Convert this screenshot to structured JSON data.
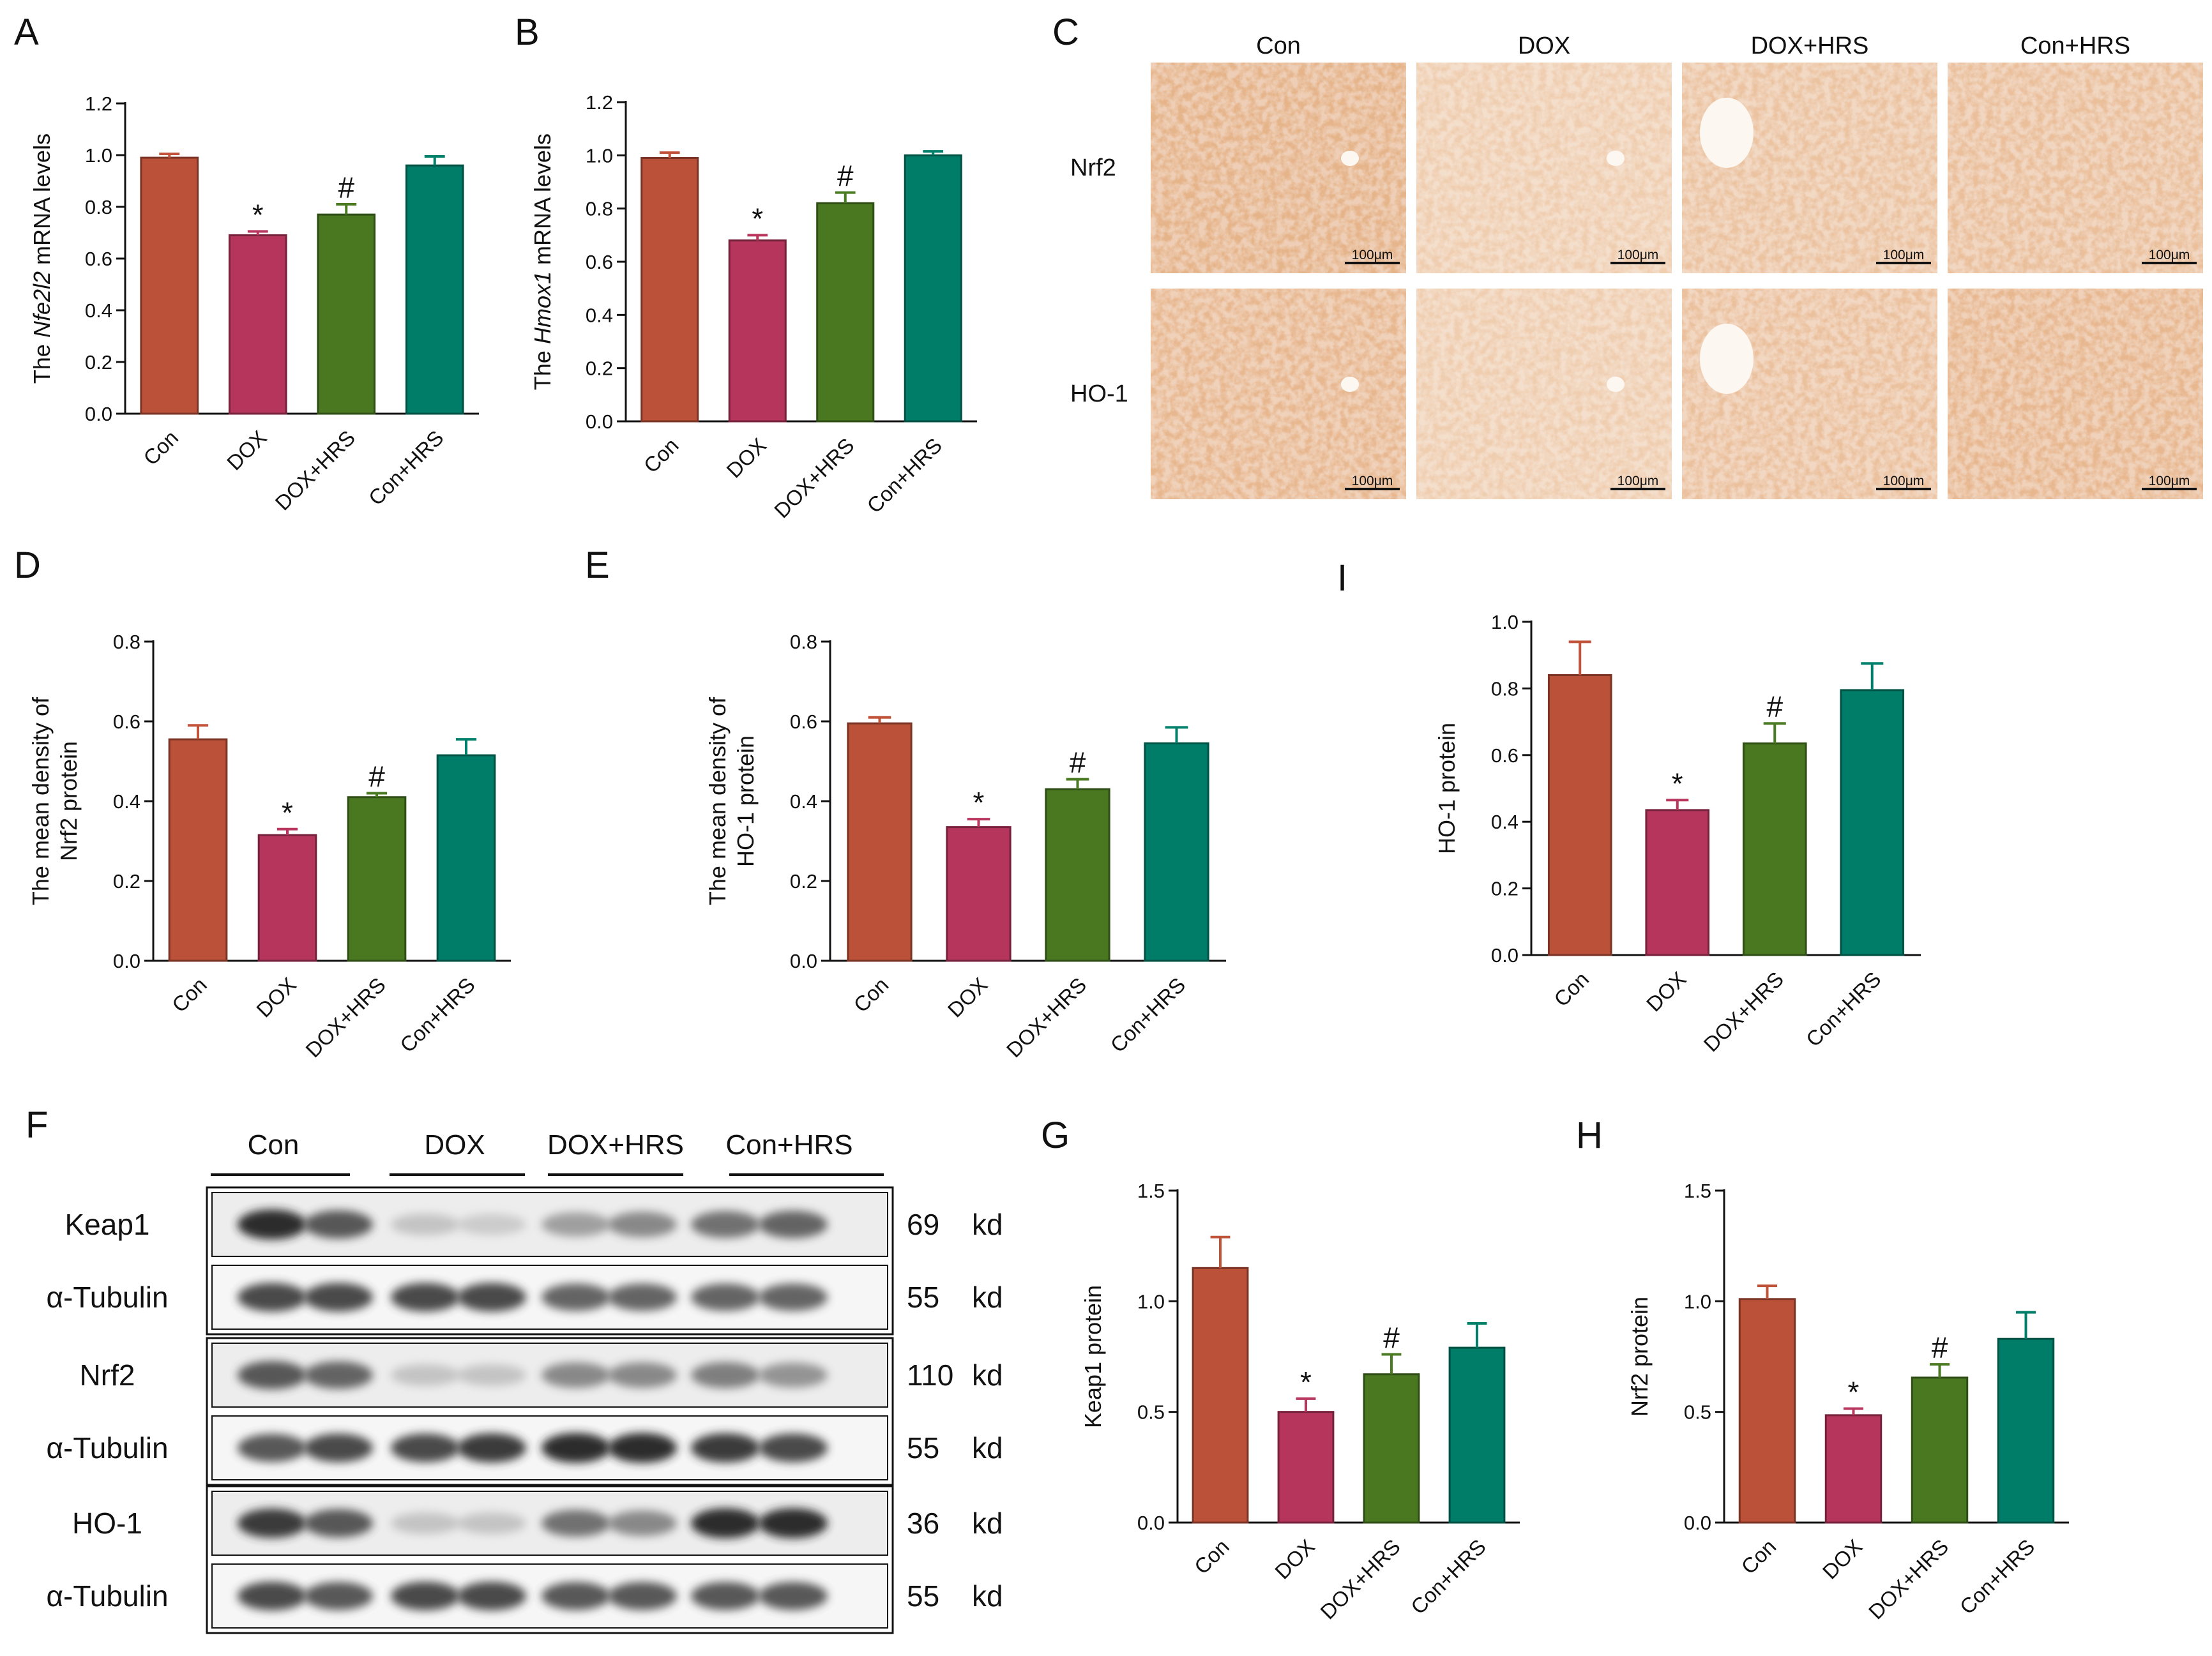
{
  "colors": {
    "Con": "#c0533a",
    "DOX": "#b9365f",
    "DOX+HRS": "#4a7a22",
    "Con+HRS": "#00806a",
    "ihc_stain": "#d9905e",
    "ihc_bg": "#f7e7d8"
  },
  "chart_data": [
    {
      "panel": "A",
      "type": "bar",
      "categories": [
        "Con",
        "DOX",
        "DOX+HRS",
        "Con+HRS"
      ],
      "values": [
        0.99,
        0.69,
        0.77,
        0.96
      ],
      "errors": [
        0.015,
        0.015,
        0.04,
        0.035
      ],
      "marks": [
        "",
        "*",
        "#",
        ""
      ],
      "ylabel_prefix": "The ",
      "ylabel_gene": "Nfe2l2",
      "ylabel_suffix": " mRNA levels",
      "ylim": [
        0,
        1.2
      ],
      "yticks": [
        "0.0",
        "0.2",
        "0.4",
        "0.6",
        "0.8",
        "1.0",
        "1.2"
      ]
    },
    {
      "panel": "B",
      "type": "bar",
      "categories": [
        "Con",
        "DOX",
        "DOX+HRS",
        "Con+HRS"
      ],
      "values": [
        0.99,
        0.68,
        0.82,
        1.0
      ],
      "errors": [
        0.02,
        0.02,
        0.04,
        0.015
      ],
      "marks": [
        "",
        "*",
        "#",
        ""
      ],
      "ylabel_prefix": "The ",
      "ylabel_gene": "Hmox1",
      "ylabel_suffix": " mRNA levels",
      "ylim": [
        0,
        1.2
      ],
      "yticks": [
        "0.0",
        "0.2",
        "0.4",
        "0.6",
        "0.8",
        "1.0",
        "1.2"
      ]
    },
    {
      "panel": "D",
      "type": "bar",
      "categories": [
        "Con",
        "DOX",
        "DOX+HRS",
        "Con+HRS"
      ],
      "values": [
        0.555,
        0.315,
        0.41,
        0.515
      ],
      "errors": [
        0.035,
        0.015,
        0.01,
        0.04
      ],
      "marks": [
        "",
        "*",
        "#",
        ""
      ],
      "ylabel_lines": [
        "The mean density of",
        "Nrf2 protein"
      ],
      "ylim": [
        0,
        0.8
      ],
      "yticks": [
        "0.0",
        "0.2",
        "0.4",
        "0.6",
        "0.8"
      ]
    },
    {
      "panel": "E",
      "type": "bar",
      "categories": [
        "Con",
        "DOX",
        "DOX+HRS",
        "Con+HRS"
      ],
      "values": [
        0.595,
        0.335,
        0.43,
        0.545
      ],
      "errors": [
        0.015,
        0.02,
        0.025,
        0.04
      ],
      "marks": [
        "",
        "*",
        "#",
        ""
      ],
      "ylabel_lines": [
        "The mean density of",
        "HO-1 protein"
      ],
      "ylim": [
        0,
        0.8
      ],
      "yticks": [
        "0.0",
        "0.2",
        "0.4",
        "0.6",
        "0.8"
      ]
    },
    {
      "panel": "I",
      "type": "bar",
      "categories": [
        "Con",
        "DOX",
        "DOX+HRS",
        "Con+HRS"
      ],
      "values": [
        0.84,
        0.435,
        0.635,
        0.795
      ],
      "errors": [
        0.1,
        0.03,
        0.06,
        0.08
      ],
      "marks": [
        "",
        "*",
        "#",
        ""
      ],
      "ylabel_lines": [
        "HO-1  protein"
      ],
      "ylim": [
        0,
        1.0
      ],
      "yticks": [
        "0.0",
        "0.2",
        "0.4",
        "0.6",
        "0.8",
        "1.0"
      ]
    },
    {
      "panel": "G",
      "type": "bar",
      "categories": [
        "Con",
        "DOX",
        "DOX+HRS",
        "Con+HRS"
      ],
      "values": [
        1.15,
        0.5,
        0.67,
        0.79
      ],
      "errors": [
        0.14,
        0.06,
        0.09,
        0.11
      ],
      "marks": [
        "",
        "*",
        "#",
        ""
      ],
      "ylabel_lines": [
        "Keap1  protein"
      ],
      "ylim": [
        0,
        1.5
      ],
      "yticks": [
        "0.0",
        "0.5",
        "1.0",
        "1.5"
      ]
    },
    {
      "panel": "H",
      "type": "bar",
      "categories": [
        "Con",
        "DOX",
        "DOX+HRS",
        "Con+HRS"
      ],
      "values": [
        1.01,
        0.485,
        0.655,
        0.83
      ],
      "errors": [
        0.06,
        0.03,
        0.06,
        0.12
      ],
      "marks": [
        "",
        "*",
        "#",
        ""
      ],
      "ylabel_lines": [
        "Nrf2  protein"
      ],
      "ylim": [
        0,
        1.5
      ],
      "yticks": [
        "0.0",
        "0.5",
        "1.0",
        "1.5"
      ]
    }
  ],
  "ihc": {
    "panel": "C",
    "columns": [
      "Con",
      "DOX",
      "DOX+HRS",
      "Con+HRS"
    ],
    "rows": [
      "Nrf2",
      "HO-1"
    ],
    "stain_intensity": [
      [
        0.8,
        0.25,
        0.45,
        0.55
      ],
      [
        0.7,
        0.25,
        0.5,
        0.7
      ]
    ],
    "scale_label": "100μm"
  },
  "western": {
    "panel": "F",
    "groups": [
      "Con",
      "DOX",
      "DOX+HRS",
      "Con+HRS"
    ],
    "rows": [
      {
        "label": "Keap1",
        "size": "69",
        "unit": "kd",
        "intensity": [
          0.95,
          0.8,
          0.3,
          0.25,
          0.5,
          0.6,
          0.7,
          0.75
        ]
      },
      {
        "label": "α-Tubulin",
        "size": "55",
        "unit": "kd",
        "intensity": [
          0.85,
          0.85,
          0.85,
          0.85,
          0.75,
          0.75,
          0.75,
          0.75
        ]
      },
      {
        "label": "Nrf2",
        "size": "110",
        "unit": "kd",
        "intensity": [
          0.8,
          0.75,
          0.3,
          0.3,
          0.6,
          0.6,
          0.65,
          0.55
        ]
      },
      {
        "label": "α-Tubulin",
        "size": "55",
        "unit": "kd",
        "intensity": [
          0.8,
          0.85,
          0.85,
          0.9,
          0.95,
          0.95,
          0.9,
          0.85
        ]
      },
      {
        "label": "HO-1",
        "size": "36",
        "unit": "kd",
        "intensity": [
          0.9,
          0.8,
          0.3,
          0.3,
          0.7,
          0.6,
          0.95,
          0.95
        ]
      },
      {
        "label": "α-Tubulin",
        "size": "55",
        "unit": "kd",
        "intensity": [
          0.85,
          0.8,
          0.85,
          0.85,
          0.8,
          0.8,
          0.8,
          0.8
        ]
      }
    ]
  }
}
